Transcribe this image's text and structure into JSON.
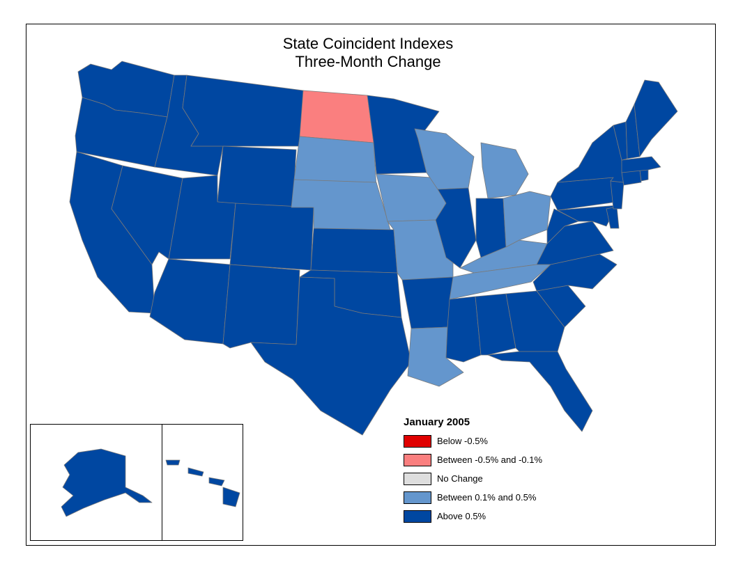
{
  "title": {
    "line1": "State Coincident Indexes",
    "line2": "Three-Month Change"
  },
  "colors": {
    "below_neg_0_5": "#e00000",
    "between_neg_0_5_neg_0_1": "#fa7f7f",
    "no_change": "#dedede",
    "between_0_1_0_5": "#6496cd",
    "above_0_5": "#0047a1",
    "boundary": "#7a7a7a"
  },
  "legend": {
    "title": "January 2005",
    "items": [
      {
        "key": "below_neg_0_5",
        "label": "Below -0.5%"
      },
      {
        "key": "between_neg_0_5_neg_0_1",
        "label": "Between -0.5% and -0.1%"
      },
      {
        "key": "no_change",
        "label": "No Change"
      },
      {
        "key": "between_0_1_0_5",
        "label": "Between 0.1% and 0.5%"
      },
      {
        "key": "above_0_5",
        "label": "Above 0.5%"
      }
    ]
  },
  "state_categories": {
    "ND": "between_neg_0_5_neg_0_1",
    "SD": "between_0_1_0_5",
    "NE": "between_0_1_0_5",
    "IA": "between_0_1_0_5",
    "MO": "between_0_1_0_5",
    "WI": "between_0_1_0_5",
    "MI": "between_0_1_0_5",
    "OH": "between_0_1_0_5",
    "KY": "between_0_1_0_5",
    "TN": "between_0_1_0_5",
    "LA": "between_0_1_0_5",
    "WA": "above_0_5",
    "OR": "above_0_5",
    "CA": "above_0_5",
    "ID": "above_0_5",
    "NV": "above_0_5",
    "MT": "above_0_5",
    "WY": "above_0_5",
    "UT": "above_0_5",
    "CO": "above_0_5",
    "AZ": "above_0_5",
    "NM": "above_0_5",
    "TX": "above_0_5",
    "OK": "above_0_5",
    "KS": "above_0_5",
    "MN": "above_0_5",
    "AR": "above_0_5",
    "IL": "above_0_5",
    "IN": "above_0_5",
    "MS": "above_0_5",
    "AL": "above_0_5",
    "GA": "above_0_5",
    "FL": "above_0_5",
    "SC": "above_0_5",
    "NC": "above_0_5",
    "VA": "above_0_5",
    "WV": "above_0_5",
    "MD": "above_0_5",
    "DE": "above_0_5",
    "PA": "above_0_5",
    "NJ": "above_0_5",
    "NY": "above_0_5",
    "CT": "above_0_5",
    "RI": "above_0_5",
    "MA": "above_0_5",
    "VT": "above_0_5",
    "NH": "above_0_5",
    "ME": "above_0_5",
    "AK": "above_0_5",
    "HI": "above_0_5"
  }
}
